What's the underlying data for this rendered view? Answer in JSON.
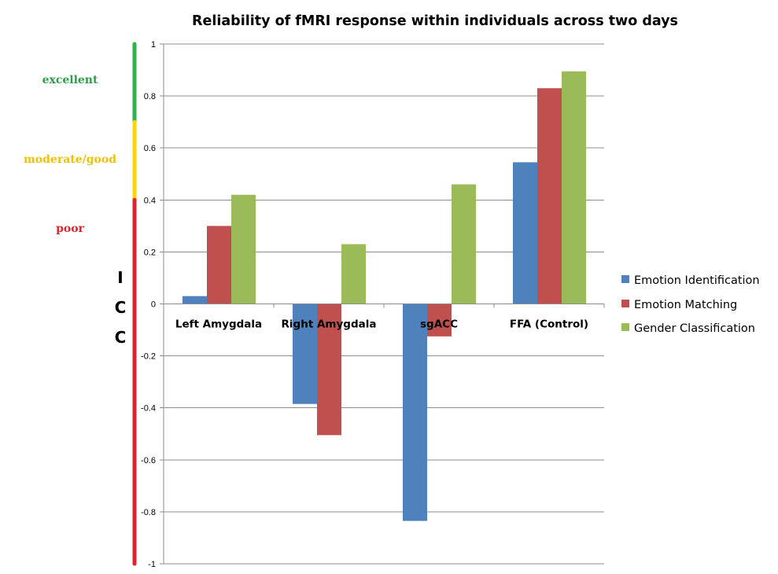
{
  "chart_data": {
    "type": "bar",
    "title": "Reliability of fMRI response within individuals across two days",
    "ylabel_letters": [
      "I",
      "C",
      "C"
    ],
    "ylim": [
      -1,
      1
    ],
    "yticks": [
      {
        "value": 1,
        "label": "1"
      },
      {
        "value": 0.8,
        "label": "0.8"
      },
      {
        "value": 0.6,
        "label": "0.6"
      },
      {
        "value": 0.4,
        "label": "0.4"
      },
      {
        "value": 0.2,
        "label": "0.2"
      },
      {
        "value": 0,
        "label": "0"
      },
      {
        "value": -0.2,
        "label": "-0.2"
      },
      {
        "value": -0.4,
        "label": "-0.4"
      },
      {
        "value": -0.6,
        "label": "-0.6"
      },
      {
        "value": -0.8,
        "label": "-0.8"
      },
      {
        "value": -1,
        "label": "-1"
      }
    ],
    "categories": [
      "Left Amygdala",
      "Right Amygdala",
      "sgACC",
      "FFA (Control)"
    ],
    "series": [
      {
        "name": "Emotion Identification",
        "color": "#4f81bd",
        "values": [
          0.03,
          -0.385,
          -0.835,
          0.545
        ]
      },
      {
        "name": "Emotion Matching",
        "color": "#c0504d",
        "values": [
          0.3,
          -0.505,
          -0.125,
          0.83
        ]
      },
      {
        "name": "Gender Classification",
        "color": "#9bbb59",
        "values": [
          0.42,
          0.23,
          0.46,
          0.895
        ]
      }
    ],
    "grid": true,
    "legend_position": "right",
    "reliability_bands": [
      {
        "label": "excellent",
        "from": 0.7,
        "to": 1.0,
        "color": "#2fb24c",
        "text_color": "#2e9e49"
      },
      {
        "label": "moderate/good",
        "from": 0.4,
        "to": 0.7,
        "color": "#ffd400",
        "text_color": "#f2c100"
      },
      {
        "label": "poor",
        "from": -1.0,
        "to": 0.4,
        "color": "#e1232e",
        "text_color": "#e1232e"
      }
    ]
  }
}
